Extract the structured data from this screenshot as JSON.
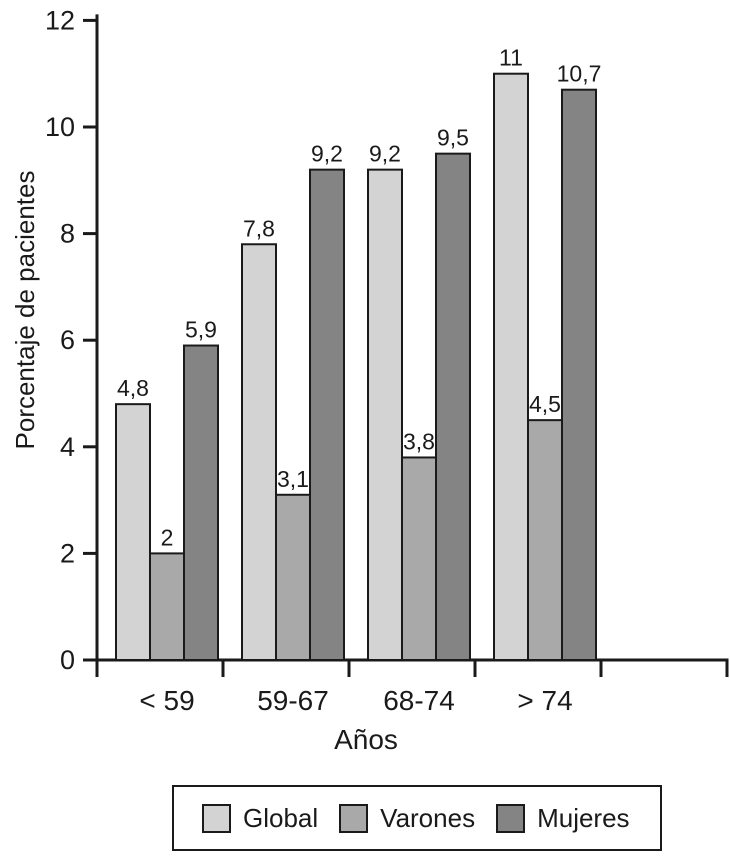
{
  "figure": {
    "background": "#ffffff",
    "ink_color": "#1a1a1a"
  },
  "chart_data": {
    "type": "bar",
    "title": "",
    "xlabel": "Años",
    "ylabel": "Porcentaje de pacientes",
    "categories": [
      "< 59",
      "59-67",
      "68-74",
      "> 74"
    ],
    "series": [
      {
        "name": "Global",
        "color": "#d3d3d3",
        "values": [
          4.8,
          7.8,
          9.2,
          11
        ],
        "labels": [
          "4,8",
          "7,8",
          "9,2",
          "11"
        ]
      },
      {
        "name": "Varones",
        "color": "#a9a9a9",
        "values": [
          2,
          3.1,
          3.8,
          4.5
        ],
        "labels": [
          "2",
          "3,1",
          "3,8",
          "4,5"
        ]
      },
      {
        "name": "Mujeres",
        "color": "#848484",
        "values": [
          5.9,
          9.2,
          9.5,
          10.7
        ],
        "labels": [
          "5,9",
          "9,2",
          "9,5",
          "10,7"
        ]
      }
    ],
    "ylim": [
      0,
      12
    ],
    "ytick_step": 2,
    "yticks": [
      "0",
      "2",
      "4",
      "6",
      "8",
      "10",
      "12"
    ],
    "grid": false,
    "legend_position": "bottom",
    "decimal_separator": ","
  }
}
